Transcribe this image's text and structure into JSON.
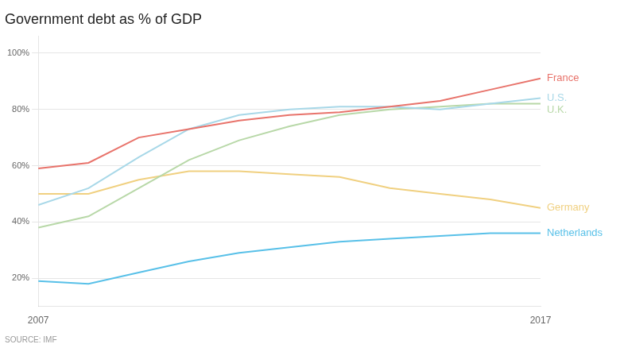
{
  "chart_data": {
    "type": "line",
    "title": "Government debt as % of GDP",
    "annotations": [
      "SOURCE: IMF"
    ],
    "x": [
      2007,
      2008,
      2009,
      2010,
      2011,
      2012,
      2013,
      2014,
      2015,
      2016,
      2017
    ],
    "series": [
      {
        "name": "France",
        "color": "#e8736b",
        "values": [
          59,
          61,
          70,
          73,
          76,
          78,
          79,
          81,
          83,
          87,
          91
        ]
      },
      {
        "name": "U.S.",
        "color": "#a8d8e8",
        "values": [
          46,
          52,
          63,
          73,
          78,
          80,
          81,
          81,
          80,
          82,
          84
        ]
      },
      {
        "name": "U.K.",
        "color": "#b8d8a8",
        "values": [
          38,
          42,
          52,
          62,
          69,
          74,
          78,
          80,
          81,
          82,
          82
        ]
      },
      {
        "name": "Germany",
        "color": "#f0d080",
        "values": [
          50,
          50,
          55,
          58,
          58,
          57,
          56,
          52,
          50,
          48,
          45
        ]
      },
      {
        "name": "Netherlands",
        "color": "#58c0e8",
        "values": [
          19,
          18,
          22,
          26,
          29,
          31,
          33,
          34,
          35,
          36,
          36
        ]
      }
    ],
    "xlim": [
      2007,
      2017
    ],
    "xticks": [
      2007,
      2017
    ],
    "ylim": [
      10,
      106
    ],
    "yticks": [
      {
        "value": 20,
        "label": "20%"
      },
      {
        "value": 40,
        "label": "40%"
      },
      {
        "value": 60,
        "label": "60%"
      },
      {
        "value": 80,
        "label": "80%"
      },
      {
        "value": 100,
        "label": "100%"
      }
    ],
    "grid": "y"
  }
}
